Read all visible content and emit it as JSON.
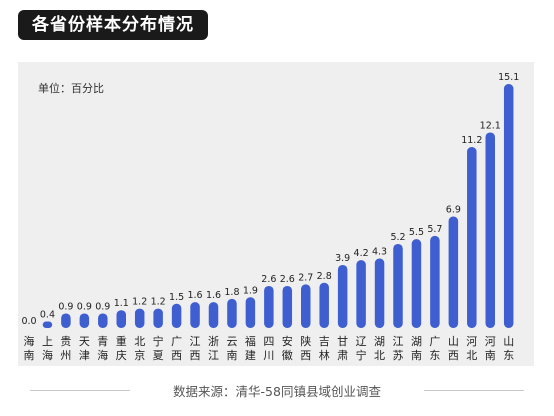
{
  "title": "各省份样本分布情况",
  "unit_label": "单位：百分比",
  "source": "数据来源：清华-58同镇县域创业调查",
  "colors": {
    "bar": "#3f5fd1",
    "title_bg": "#1a1a1a",
    "panel_bg": "#efefef"
  },
  "chart_data": {
    "type": "bar",
    "title": "各省份样本分布情况",
    "ylabel": "单位：百分比",
    "xlabel": "",
    "grid": false,
    "ylim": [
      0,
      15.1
    ],
    "categories": [
      "海南",
      "上海",
      "贵州",
      "天津",
      "青海",
      "重庆",
      "北京",
      "宁夏",
      "广西",
      "江西",
      "浙江",
      "云南",
      "福建",
      "四川",
      "安徽",
      "陕西",
      "吉林",
      "甘肃",
      "辽宁",
      "湖北",
      "江苏",
      "湖南",
      "广东",
      "山西",
      "河北",
      "河南",
      "山东"
    ],
    "values": [
      0.0,
      0.4,
      0.9,
      0.9,
      0.9,
      1.1,
      1.2,
      1.2,
      1.5,
      1.6,
      1.6,
      1.8,
      1.9,
      2.6,
      2.6,
      2.7,
      2.8,
      3.9,
      4.2,
      4.3,
      5.2,
      5.5,
      5.7,
      6.9,
      11.2,
      12.1,
      15.1
    ],
    "value_labels": [
      "0.0",
      "0.4",
      "0.9",
      "0.9",
      "0.9",
      "1.1",
      "1.2",
      "1.2",
      "1.5",
      "1.6",
      "1.6",
      "1.8",
      "1.9",
      "2.6",
      "2.6",
      "2.7",
      "2.8",
      "3.9",
      "4.2",
      "4.3",
      "5.2",
      "5.5",
      "5.7",
      "6.9",
      "11.2",
      "12.1",
      "15.1"
    ]
  }
}
